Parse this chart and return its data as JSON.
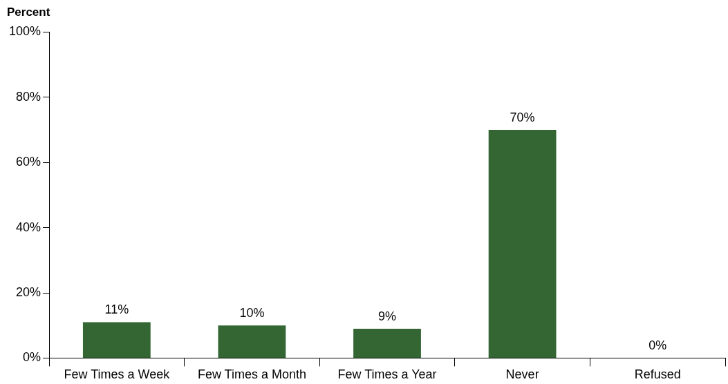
{
  "chart_data": {
    "type": "bar",
    "ylabel": "Percent",
    "categories": [
      "Few Times a Week",
      "Few Times a Month",
      "Few Times a Year",
      "Never",
      "Refused"
    ],
    "values": [
      11,
      10,
      9,
      70,
      0
    ],
    "color": "#336633",
    "value_labels": [
      "11%",
      "10%",
      "9%",
      "70%",
      "0%"
    ],
    "ylim": [
      0,
      100
    ],
    "yticks": [
      {
        "value": 0,
        "label": "0%"
      },
      {
        "value": 20,
        "label": "20%"
      },
      {
        "value": 40,
        "label": "40%"
      },
      {
        "value": 60,
        "label": "60%"
      },
      {
        "value": 80,
        "label": "80%"
      },
      {
        "value": 100,
        "label": "100%"
      }
    ],
    "grid": false,
    "legend": false
  }
}
